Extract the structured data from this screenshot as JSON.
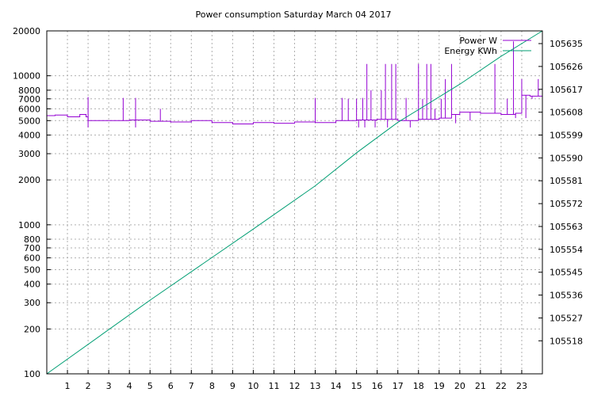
{
  "chart_data": {
    "type": "line",
    "title": "Power consumption Saturday March 04 2017",
    "xlabel": "",
    "ylabel": "",
    "y2label": "",
    "grid": true,
    "legend_position": "top-right",
    "x_range": [
      0,
      24
    ],
    "x_ticks": [
      1,
      2,
      3,
      4,
      5,
      6,
      7,
      8,
      9,
      10,
      11,
      12,
      13,
      14,
      15,
      16,
      17,
      18,
      19,
      20,
      21,
      22,
      23
    ],
    "y_scale": "log",
    "y_range": [
      100,
      20000
    ],
    "y_ticks": [
      100,
      200,
      300,
      400,
      500,
      600,
      700,
      800,
      1000,
      2000,
      3000,
      4000,
      5000,
      6000,
      7000,
      8000,
      10000,
      20000
    ],
    "y2_range": [
      105505,
      105640
    ],
    "y2_ticks": [
      105518,
      105527,
      105536,
      105545,
      105554,
      105563,
      105572,
      105581,
      105590,
      105599,
      105608,
      105617,
      105626,
      105635
    ],
    "series": [
      {
        "name": "Power W",
        "color": "#9400d3",
        "axis": "y",
        "baseline": [
          [
            0,
            5400
          ],
          [
            0.4,
            5450
          ],
          [
            1.0,
            5300
          ],
          [
            1.6,
            5500
          ],
          [
            1.9,
            5300
          ],
          [
            2.0,
            5000
          ],
          [
            3.0,
            5000
          ],
          [
            4.0,
            5050
          ],
          [
            5.0,
            4950
          ],
          [
            6.0,
            4900
          ],
          [
            7.0,
            5000
          ],
          [
            8.0,
            4850
          ],
          [
            9.0,
            4750
          ],
          [
            10.0,
            4850
          ],
          [
            11.0,
            4800
          ],
          [
            12.0,
            4900
          ],
          [
            13.0,
            4850
          ],
          [
            14.0,
            5000
          ],
          [
            15.0,
            5050
          ],
          [
            16.0,
            5100
          ],
          [
            17.0,
            5000
          ],
          [
            18.0,
            5100
          ],
          [
            19.0,
            5200
          ],
          [
            19.6,
            5500
          ],
          [
            20.0,
            5700
          ],
          [
            21.0,
            5600
          ],
          [
            22.0,
            5500
          ],
          [
            22.7,
            5600
          ],
          [
            23.0,
            7400
          ],
          [
            23.4,
            7300
          ],
          [
            24.0,
            7200
          ]
        ],
        "spikes": [
          [
            2.0,
            7200
          ],
          [
            2.0,
            4500
          ],
          [
            3.7,
            7100
          ],
          [
            4.3,
            7100
          ],
          [
            4.3,
            4500
          ],
          [
            5.5,
            6000
          ],
          [
            13.0,
            7100
          ],
          [
            14.3,
            7100
          ],
          [
            14.6,
            7000
          ],
          [
            15.0,
            7000
          ],
          [
            15.1,
            4500
          ],
          [
            15.3,
            7100
          ],
          [
            15.4,
            4500
          ],
          [
            15.5,
            12000
          ],
          [
            15.7,
            8000
          ],
          [
            15.9,
            4500
          ],
          [
            16.2,
            8000
          ],
          [
            16.4,
            12000
          ],
          [
            16.5,
            4500
          ],
          [
            16.7,
            12000
          ],
          [
            16.9,
            12000
          ],
          [
            17.4,
            7100
          ],
          [
            17.6,
            4500
          ],
          [
            18.0,
            12000
          ],
          [
            18.2,
            7000
          ],
          [
            18.4,
            12000
          ],
          [
            18.6,
            12000
          ],
          [
            18.8,
            6000
          ],
          [
            19.1,
            7000
          ],
          [
            19.3,
            9500
          ],
          [
            19.6,
            12000
          ],
          [
            19.8,
            4800
          ],
          [
            20.5,
            5000
          ],
          [
            21.7,
            12000
          ],
          [
            22.3,
            7000
          ],
          [
            22.6,
            17000
          ],
          [
            22.7,
            5200
          ],
          [
            23.0,
            9500
          ],
          [
            23.2,
            5200
          ],
          [
            23.5,
            7000
          ],
          [
            23.8,
            9500
          ]
        ]
      },
      {
        "name": "Energy KWh",
        "color": "#009e73",
        "axis": "y2",
        "points": [
          [
            0,
            105505
          ],
          [
            5,
            105534
          ],
          [
            10,
            105562
          ],
          [
            13,
            105579
          ],
          [
            15,
            105592
          ],
          [
            17,
            105604
          ],
          [
            20,
            105619
          ],
          [
            22,
            105630
          ],
          [
            24,
            105640
          ]
        ]
      }
    ]
  }
}
